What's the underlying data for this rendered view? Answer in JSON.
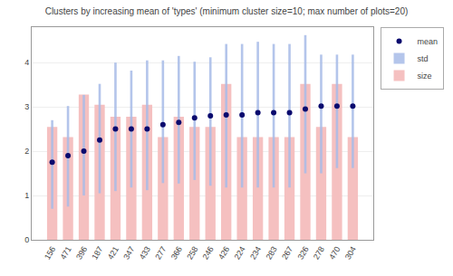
{
  "chart_data": {
    "type": "bar",
    "title": "Clusters by increasing mean of 'types' (minimum cluster size=10; max number of plots=20)",
    "categories": [
      "156",
      "471",
      "396",
      "187",
      "421",
      "347",
      "433",
      "277",
      "366",
      "258",
      "246",
      "426",
      "224",
      "234",
      "283",
      "267",
      "326",
      "278",
      "470",
      "304"
    ],
    "series": [
      {
        "name": "mean",
        "type": "scatter",
        "marker": "circle",
        "color": "#0a0a6e",
        "values": [
          1.75,
          1.9,
          2.0,
          2.25,
          2.5,
          2.5,
          2.5,
          2.6,
          2.65,
          2.75,
          2.8,
          2.82,
          2.82,
          2.87,
          2.87,
          2.87,
          2.95,
          3.02,
          3.02,
          3.02
        ]
      },
      {
        "name": "std",
        "type": "bar",
        "color": "#a8bce8",
        "low": [
          0.7,
          0.75,
          1.0,
          1.05,
          1.1,
          1.18,
          1.12,
          1.28,
          1.27,
          1.35,
          1.22,
          1.18,
          1.18,
          1.18,
          1.18,
          1.18,
          1.5,
          1.5,
          1.62,
          1.62
        ],
        "high": [
          2.7,
          3.02,
          3.27,
          3.52,
          4.0,
          3.82,
          4.05,
          4.05,
          4.15,
          4.02,
          4.12,
          4.42,
          4.42,
          4.47,
          4.42,
          4.42,
          4.62,
          4.18,
          4.18,
          4.18
        ]
      },
      {
        "name": "size",
        "type": "bar",
        "color": "#f5c0c0",
        "values": [
          2.55,
          2.32,
          3.28,
          3.05,
          2.78,
          2.78,
          3.05,
          2.32,
          2.78,
          2.55,
          2.55,
          3.52,
          2.32,
          2.32,
          2.32,
          2.32,
          3.52,
          2.55,
          3.52,
          2.32
        ]
      }
    ],
    "ylim": [
      0,
      4.8
    ],
    "yticks": [
      0,
      1,
      2,
      3,
      4
    ],
    "grid": true,
    "legend": "right"
  }
}
